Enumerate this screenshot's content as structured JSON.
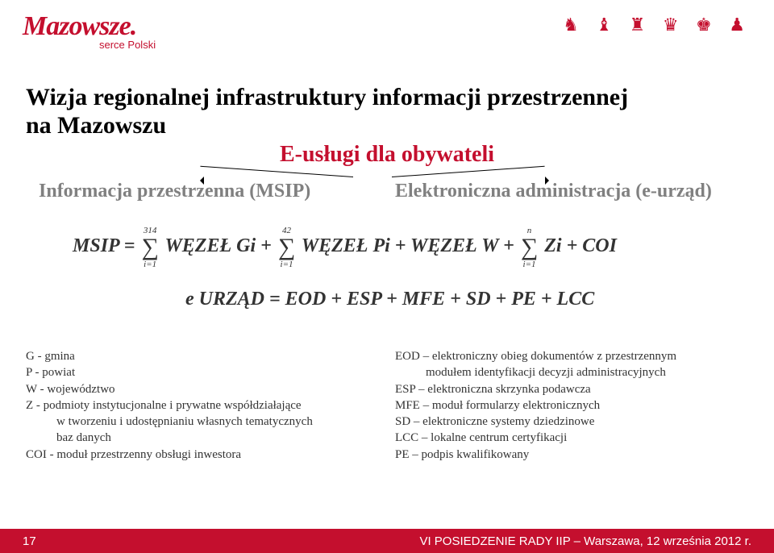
{
  "header": {
    "logo_text": "Mazowsze.",
    "logo_sub": "serce Polski",
    "icons": "♞ ♝ ♜ ♛ ♚ ♟"
  },
  "title_line1": "Wizja regionalnej infrastruktury informacji przestrzennej",
  "title_line2": "na Mazowszu",
  "subtitle": "E-usługi dla obywateli",
  "branch_left": "Informacja przestrzenna (MSIP)",
  "branch_right": "Elektroniczna administracja (e-urząd)",
  "formula1": {
    "lead": "MSIP = ",
    "s1_top": "314",
    "s1_bot": "i=1",
    "t1": " WĘZEŁ Gi + ",
    "s2_top": "42",
    "s2_bot": "i=1",
    "t2": " WĘZEŁ Pi + WĘZEŁ W + ",
    "s3_top": "n",
    "s3_bot": "i=1",
    "t3": "Zi + COI"
  },
  "formula2": "e URZĄD = EOD + ESP + MFE + SD + PE + LCC",
  "legend_left": {
    "l1": "G - gmina",
    "l2": "P - powiat",
    "l3": "W - województwo",
    "l4": "Z - podmioty instytucjonalne i prywatne współdziałające",
    "l5": "w tworzeniu i udostępnianiu własnych tematycznych",
    "l6": "baz danych",
    "l7": "COI - moduł przestrzenny obsługi inwestora"
  },
  "legend_right": {
    "r1": "EOD – elektroniczny obieg dokumentów z przestrzennym",
    "r2": "modułem identyfikacji decyzji administracyjnych",
    "r3": "ESP – elektroniczna skrzynka podawcza",
    "r4": "MFE – moduł formularzy elektronicznych",
    "r5": "SD – elektroniczne systemy dziedzinowe",
    "r6": "LCC – lokalne centrum certyfikacji",
    "r7": "PE – podpis kwalifikowany"
  },
  "footer": {
    "page": "17",
    "text": "VI POSIEDZENIE RADY IIP – Warszawa, 12 września 2012 r."
  },
  "colors": {
    "brand": "#c40f2e",
    "gray": "#808080",
    "text": "#333333",
    "bg": "#ffffff"
  }
}
